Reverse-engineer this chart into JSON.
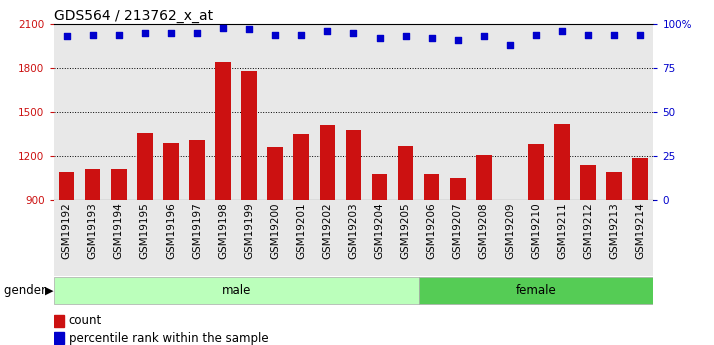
{
  "title": "GDS564 / 213762_x_at",
  "samples": [
    "GSM19192",
    "GSM19193",
    "GSM19194",
    "GSM19195",
    "GSM19196",
    "GSM19197",
    "GSM19198",
    "GSM19199",
    "GSM19200",
    "GSM19201",
    "GSM19202",
    "GSM19203",
    "GSM19204",
    "GSM19205",
    "GSM19206",
    "GSM19207",
    "GSM19208",
    "GSM19209",
    "GSM19210",
    "GSM19211",
    "GSM19212",
    "GSM19213",
    "GSM19214"
  ],
  "counts": [
    1090,
    1110,
    1110,
    1360,
    1290,
    1310,
    1840,
    1780,
    1260,
    1350,
    1410,
    1380,
    1080,
    1270,
    1080,
    1050,
    1210,
    880,
    1280,
    1420,
    1140,
    1090,
    1185
  ],
  "percentile_ranks": [
    93,
    94,
    94,
    95,
    95,
    95,
    98,
    97,
    94,
    94,
    96,
    95,
    92,
    93,
    92,
    91,
    93,
    88,
    94,
    96,
    94,
    94,
    94
  ],
  "gender_groups": [
    {
      "label": "male",
      "start": 0,
      "end": 14
    },
    {
      "label": "female",
      "start": 14,
      "end": 23
    }
  ],
  "ylim_left": [
    900,
    2100
  ],
  "ylim_right": [
    0,
    100
  ],
  "yticks_left": [
    900,
    1200,
    1500,
    1800,
    2100
  ],
  "yticks_right": [
    0,
    25,
    50,
    75,
    100
  ],
  "bar_color": "#cc1111",
  "dot_color": "#0000cc",
  "bar_width": 0.6,
  "bg_color": "#e8e8e8",
  "male_color": "#bbffbb",
  "female_color": "#55cc55",
  "grid_color": "#000000",
  "title_fontsize": 10,
  "tick_fontsize": 7.5,
  "legend_fontsize": 8.5
}
